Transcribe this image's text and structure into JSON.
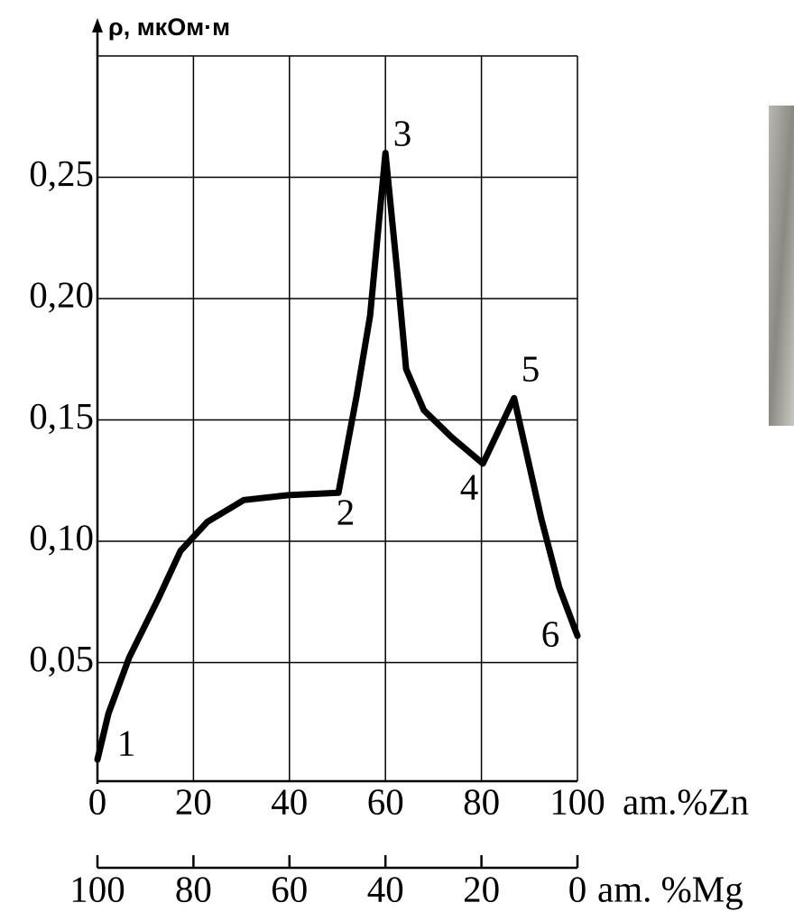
{
  "chart_data": {
    "type": "line",
    "ylabel": "ρ, мкОм·м",
    "xlabel": "am.%Zn",
    "x2label": "am. %Mg",
    "x": [
      0,
      2.3,
      6.6,
      12.6,
      17.3,
      22.9,
      30.5,
      39.8,
      50.2,
      54,
      56.8,
      60,
      62.4,
      64.3,
      68,
      73.7,
      80.3,
      86.8,
      92.5,
      96.2,
      100
    ],
    "series": [
      {
        "color": "#000000",
        "values": [
          0.01,
          0.029,
          0.052,
          0.076,
          0.096,
          0.108,
          0.117,
          0.119,
          0.12,
          0.16,
          0.193,
          0.26,
          0.212,
          0.171,
          0.154,
          0.143,
          0.132,
          0.159,
          0.109,
          0.081,
          0.061
        ]
      }
    ],
    "xlim": [
      0,
      100
    ],
    "xticks": [
      0,
      20,
      40,
      60,
      80,
      100
    ],
    "x2lim": [
      100,
      0
    ],
    "x2ticks": [
      100,
      80,
      60,
      40,
      20,
      0
    ],
    "ylim": [
      0,
      0.3
    ],
    "yticks": [
      {
        "value": 0.05,
        "label": "0,05"
      },
      {
        "value": 0.1,
        "label": "0,10"
      },
      {
        "value": 0.15,
        "label": "0,15"
      },
      {
        "value": 0.2,
        "label": "0,20"
      },
      {
        "value": 0.25,
        "label": "0,25"
      }
    ],
    "grid": true,
    "annotations": [
      "1",
      "2",
      "3",
      "4",
      "5",
      "6"
    ]
  }
}
